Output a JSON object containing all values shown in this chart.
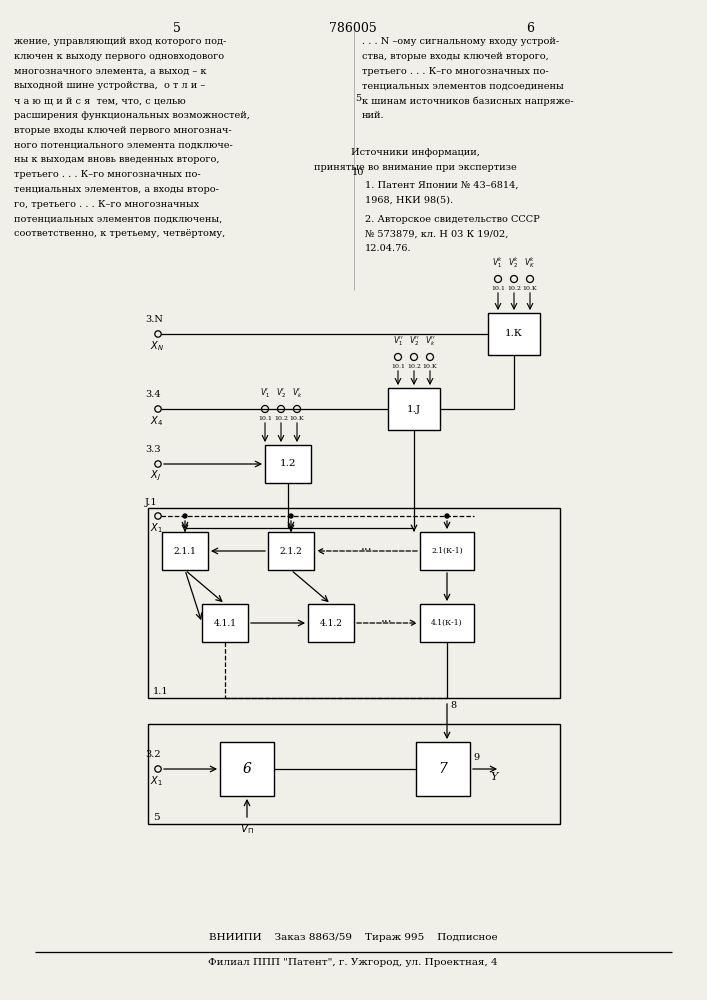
{
  "bg_color": "#f0efe8",
  "text_color": "#111111",
  "text_left": "жение, управляющий вход которого под-\nключен к выходу первого одновходового\nмногозначного элемента, а выход – к\nвыходной шине устройства,  о т л и –\nч а ю щ и й с я  тем, что, с целью\nрасширения функциональных возможностей,\nвторые входы ключей первого многознач-\nного потенциального элемента подключе-\nны к выходам вновь введенных второго,\nтретьего . . . К–го многозначных по-\nтенциальных элементов, а входы второ-\nго, третьего . . . К–го многозначных\nпотенциальных элементов подключены,\nсоответственно, к третьему, четвёртому,",
  "text_right_top": "... N –ому сигнальному входу устрой-\nства, вторые входы ключей второго,\nтретьего . . . К–го многозначных по-\nтенциальных элементов подсоединены\nк шинам источников базисных напряже-\nний.",
  "text_sources_title": "Источники информации,",
  "text_sources_sub": "принятые во внимание при экспертизе",
  "text_source1": "1. Патент Японии № 43–6814,\n1968, НКИ 98(5).",
  "text_source2": "2. Авторское свидетельство СССР\n№ 573879, кл. Н 03 К 19/02,\n12.04.76.",
  "footer1": "ВНИИПИ    Заказ 8863/59    Тираж 995    Подписное",
  "footer2": "Филиал ППП \"Патент\", г. Ужгород, ул. Проектная, 4"
}
